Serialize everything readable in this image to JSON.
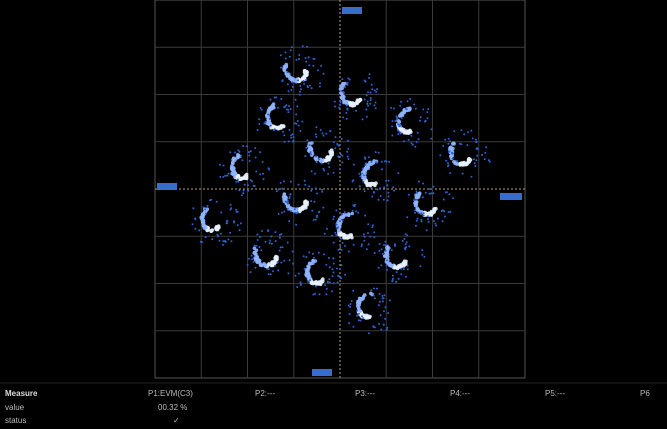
{
  "measure_panel": {
    "title": "Measure",
    "row_labels": [
      "value",
      "status"
    ],
    "columns": [
      {
        "name": "P1:EVM(C3)",
        "value": "00.32 %",
        "status": "✓"
      },
      {
        "name": "P2:---"
      },
      {
        "name": "P3:---"
      },
      {
        "name": "P4:---"
      },
      {
        "name": "P5:---"
      },
      {
        "name": "P6"
      }
    ]
  }
}
